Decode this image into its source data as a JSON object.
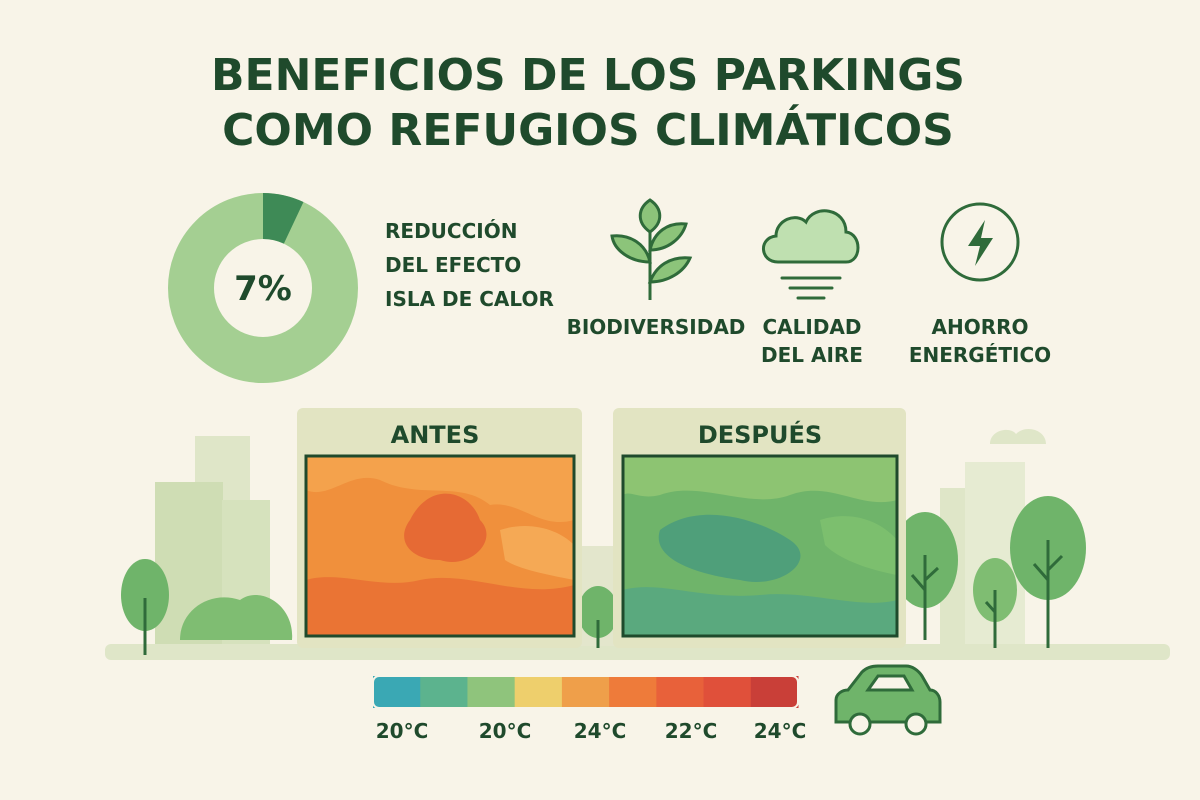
{
  "title": [
    "BENEFICIOS DE LOS PARKINGS",
    "COMO REFUGIOS CLIMÁTICOS"
  ],
  "donut": {
    "value": 7,
    "value_label": "7%",
    "caption": [
      "REDUCCIÓN",
      "DEL EFECTO",
      "ISLA DE CALOR"
    ]
  },
  "benefits": [
    {
      "label": [
        "BIODIVERSIDAD"
      ]
    },
    {
      "label": [
        "CALIDAD",
        "DEL AIRE"
      ]
    },
    {
      "label": [
        "AHORRO",
        "ENERGÉTICO"
      ]
    }
  ],
  "panels": [
    "ANTES",
    "DESPUÉS"
  ],
  "scale": {
    "colors": [
      "#3aa8b4",
      "#5cb38e",
      "#8fc47c",
      "#eecf6c",
      "#ef9f4a",
      "#ee7b3a",
      "#e8613a",
      "#e0503a",
      "#c93f38"
    ],
    "labels": [
      "20°C",
      "20°C",
      "24°C",
      "22°C",
      "24°C"
    ]
  }
}
